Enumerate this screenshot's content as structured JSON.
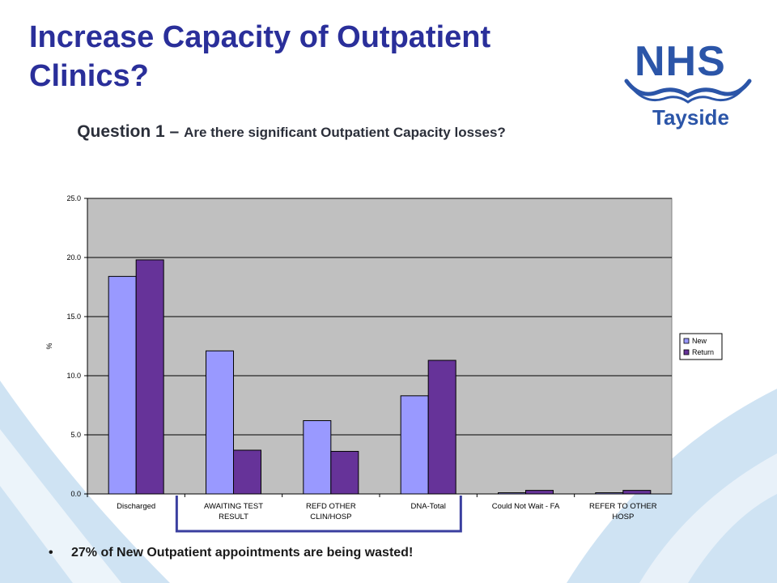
{
  "slide": {
    "title": "Increase Capacity of Outpatient Clinics?",
    "subtitle_lead": "Question 1 – ",
    "subtitle_rest": "Are there significant Outpatient Capacity losses?",
    "bullet_marker": "•",
    "bullet_text": "27% of New Outpatient appointments are being wasted!"
  },
  "logo": {
    "brand": "NHS",
    "name": "Tayside",
    "color": "#2b55a8"
  },
  "colors": {
    "title": "#2a2f9a",
    "plot_area": "#c0c0c0",
    "new": "#9999ff",
    "return": "#663399",
    "highlight_box": "#3a3f9f",
    "swoosh": "#cfe3f3"
  },
  "chart_data": {
    "type": "bar",
    "title": "",
    "xlabel": "",
    "ylabel": "%",
    "ylim": [
      0,
      25
    ],
    "yticks": [
      "0.0",
      "5.0",
      "10.0",
      "15.0",
      "20.0",
      "25.0"
    ],
    "grid": true,
    "legend_position": "right",
    "categories": [
      [
        "Discharged"
      ],
      [
        "AWAITING TEST",
        "RESULT"
      ],
      [
        "REFD OTHER",
        "CLIN/HOSP"
      ],
      [
        "DNA-Total"
      ],
      [
        "Could Not Wait - FA"
      ],
      [
        "REFER TO OTHER",
        "HOSP"
      ]
    ],
    "series": [
      {
        "name": "New",
        "values": [
          18.4,
          12.1,
          6.2,
          8.3,
          0.1,
          0.1
        ]
      },
      {
        "name": "Return",
        "values": [
          19.8,
          3.7,
          3.6,
          11.3,
          0.3,
          0.3
        ]
      }
    ],
    "highlighted_categories": [
      1,
      3
    ]
  }
}
